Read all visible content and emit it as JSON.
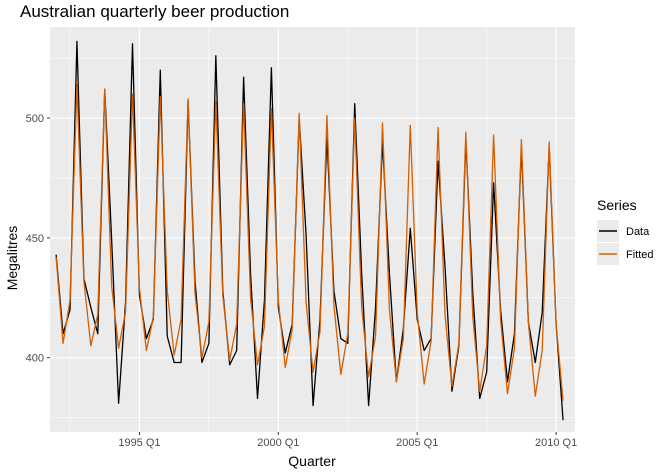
{
  "chart_data": {
    "type": "line",
    "title": "Australian quarterly beer production",
    "xlabel": "Quarter",
    "ylabel": "Megalitres",
    "x_start": "1992 Q1",
    "xlim": [
      1991.78,
      2010.68
    ],
    "ylim": [
      369,
      538
    ],
    "x_ticks": [
      {
        "value": 1995,
        "label": "1995 Q1"
      },
      {
        "value": 2000,
        "label": "2000 Q1"
      },
      {
        "value": 2005,
        "label": "2005 Q1"
      },
      {
        "value": 2010,
        "label": "2010 Q1"
      }
    ],
    "y_ticks": [
      {
        "value": 400,
        "label": "400"
      },
      {
        "value": 450,
        "label": "450"
      },
      {
        "value": 500,
        "label": "500"
      }
    ],
    "grid": true,
    "legend": {
      "title": "Series",
      "position": "right"
    },
    "series": [
      {
        "name": "Data",
        "color": "#000000",
        "values": [
          443,
          410,
          420,
          532,
          433,
          421,
          410,
          512,
          449,
          381,
          423,
          531,
          426,
          408,
          416,
          520,
          409,
          398,
          398,
          507,
          432,
          398,
          406,
          526,
          428,
          397,
          403,
          517,
          435,
          383,
          424,
          521,
          421,
          402,
          414,
          500,
          451,
          380,
          416,
          492,
          428,
          408,
          406,
          506,
          435,
          380,
          421,
          490,
          435,
          390,
          412,
          454,
          416,
          403,
          408,
          482,
          438,
          386,
          405,
          491,
          427,
          383,
          394,
          473,
          420,
          390,
          410,
          488,
          415,
          398,
          419,
          488,
          414,
          374
        ]
      },
      {
        "name": "Fitted",
        "color": "#d55e00",
        "values": [
          442,
          406,
          424,
          514,
          432,
          405,
          418,
          512,
          430,
          404,
          419,
          510,
          429,
          403,
          417,
          509,
          428,
          401,
          416,
          508,
          427,
          400,
          415,
          507,
          426,
          399,
          414,
          506,
          425,
          397,
          413,
          504,
          424,
          396,
          412,
          502,
          423,
          394,
          411,
          501,
          422,
          393,
          410,
          500,
          421,
          392,
          409,
          498,
          420,
          390,
          408,
          497,
          419,
          389,
          407,
          496,
          418,
          388,
          406,
          494,
          417,
          386,
          405,
          493,
          416,
          385,
          404,
          491,
          415,
          384,
          403,
          490,
          414,
          382
        ]
      }
    ]
  }
}
